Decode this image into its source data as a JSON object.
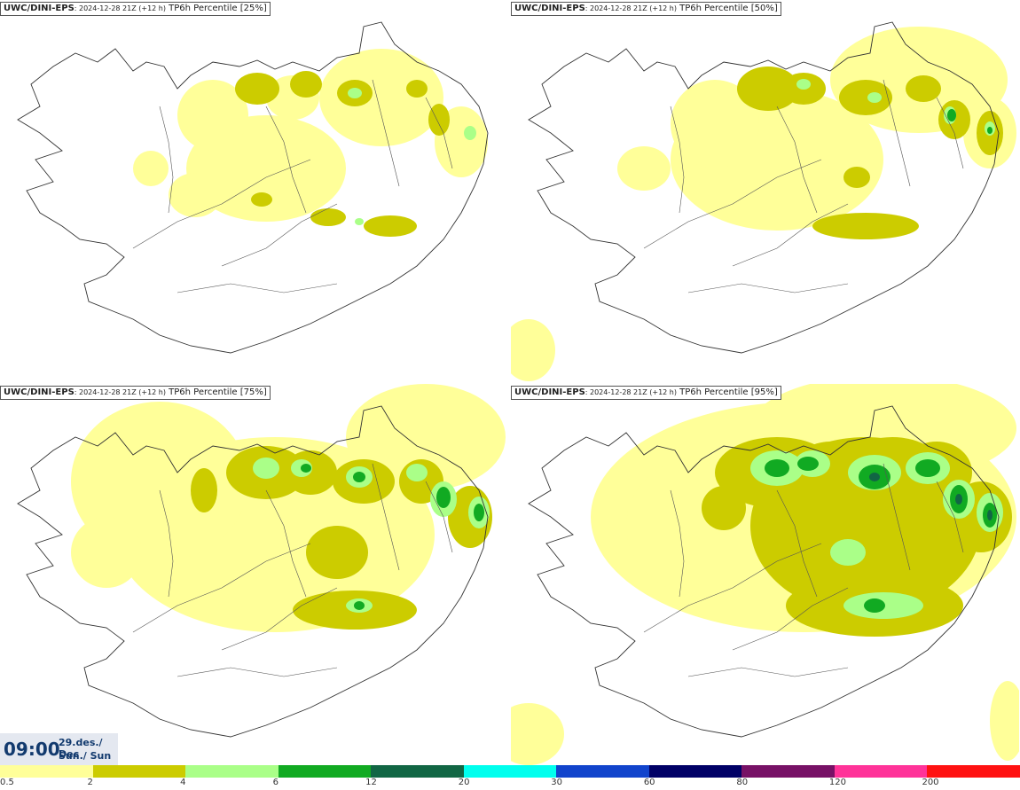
{
  "panels": [
    {
      "source": "UWC/DINI-EPS",
      "run": ": 2024-12-28 21Z (+12 h)",
      "field": " TP6h Percentile [25%]"
    },
    {
      "source": "UWC/DINI-EPS",
      "run": ": 2024-12-28 21Z (+12 h)",
      "field": " TP6h Percentile [50%]"
    },
    {
      "source": "UWC/DINI-EPS",
      "run": ": 2024-12-28 21Z (+12 h)",
      "field": " TP6h Percentile [75%]"
    },
    {
      "source": "UWC/DINI-EPS",
      "run": ": 2024-12-28 21Z (+12 h)",
      "field": " TP6h Percentile [95%]"
    }
  ],
  "time": {
    "hour": "09:00",
    "date": "29.des./ Dec",
    "day": "Sun./ Sun"
  },
  "colorbar": {
    "colors": [
      "#ffff99",
      "#cccc00",
      "#aaff88",
      "#11aa22",
      "#116644",
      "#00ffee",
      "#1144cc",
      "#000066",
      "#771166",
      "#ff3399",
      "#ff1111"
    ],
    "ticks": [
      "0.5",
      "2",
      "4",
      "6",
      "12",
      "20",
      "30",
      "60",
      "80",
      "120",
      "200"
    ]
  }
}
